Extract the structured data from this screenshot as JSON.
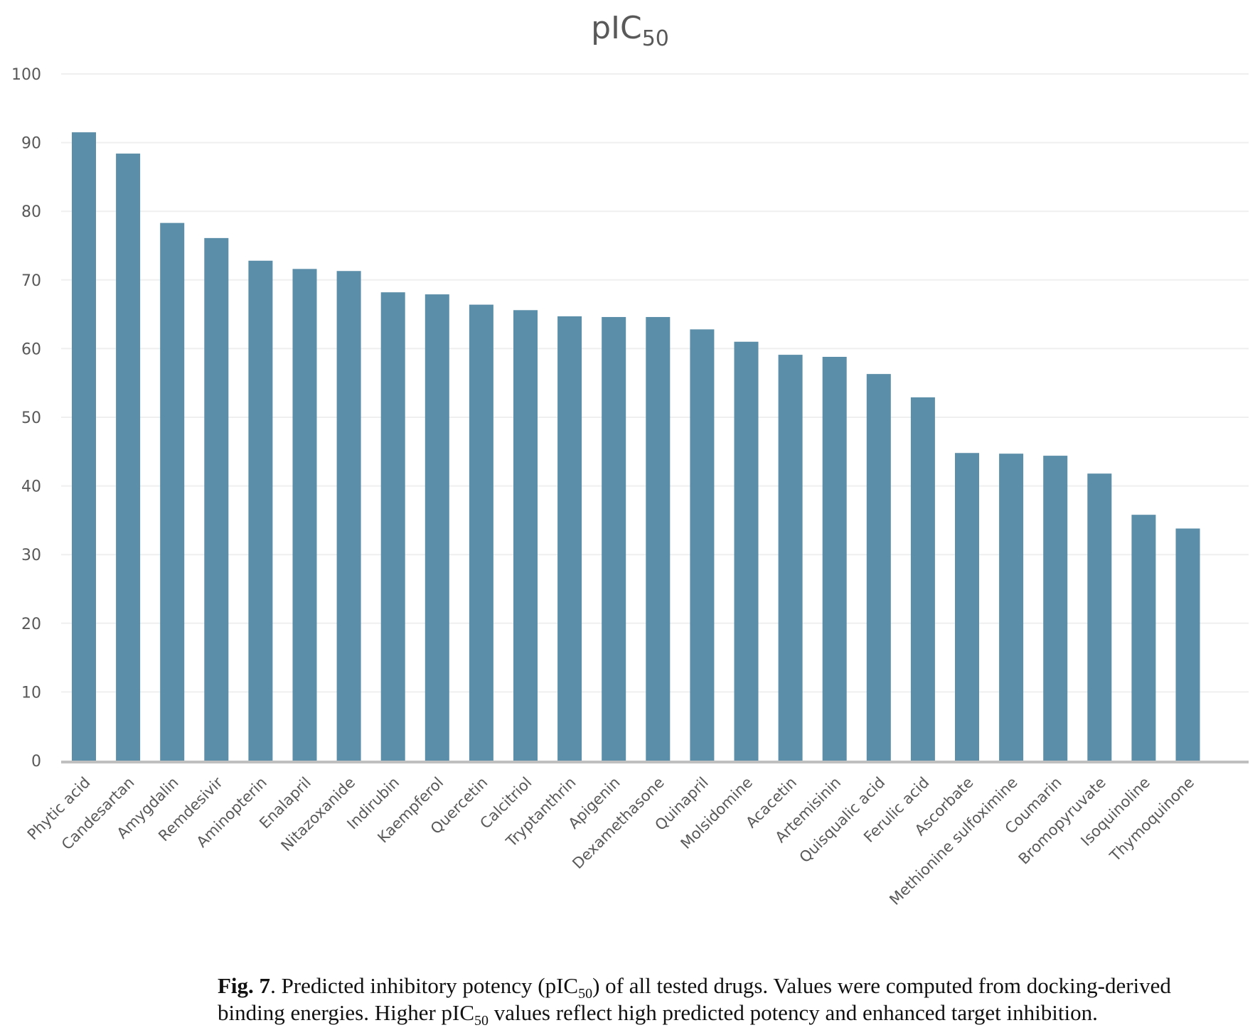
{
  "chart_data": {
    "type": "bar",
    "title": "pIC",
    "title_subscript": "50",
    "xlabel": "",
    "ylabel": "",
    "ylim": [
      0,
      100
    ],
    "yticks": [
      0,
      10,
      20,
      30,
      40,
      50,
      60,
      70,
      80,
      90,
      100
    ],
    "grid": true,
    "legend": "none",
    "bar_color": "#5b8ea8",
    "categories": [
      "Phytic acid",
      "Candesartan",
      "Amygdalin",
      "Remdesivir",
      "Aminopterin",
      "Enalapril",
      "Nitazoxanide",
      "Indirubin",
      "Kaempferol",
      "Quercetin",
      "Calcitriol",
      "Tryptanthrin",
      "Apigenin",
      "Dexamethasone",
      "Quinapril",
      "Molsidomine",
      "Acacetin",
      "Artemisinin",
      "Quisqualic acid",
      "Ferulic acid",
      "Ascorbate",
      "Methionine sulfoximine",
      "Coumarin",
      "Bromopyruvate",
      "Isoquinoline",
      "Thymoquinone"
    ],
    "values": [
      91.5,
      88.4,
      78.3,
      76.1,
      72.8,
      71.6,
      71.3,
      68.2,
      67.9,
      66.4,
      65.6,
      64.7,
      64.6,
      64.6,
      62.8,
      61.0,
      59.1,
      58.8,
      56.3,
      52.9,
      44.8,
      44.7,
      44.4,
      41.8,
      35.8,
      33.8
    ]
  },
  "caption": {
    "label": "Fig. 7",
    "line1_a": ".  Predicted inhibitory potency (pIC",
    "line1_sub": "50",
    "line1_b": ") of all tested drugs. Values were computed from docking-derived",
    "line2_a": "binding energies. Higher pIC",
    "line2_sub": "50",
    "line2_b": " values reflect high predicted potency and enhanced target inhibition."
  }
}
